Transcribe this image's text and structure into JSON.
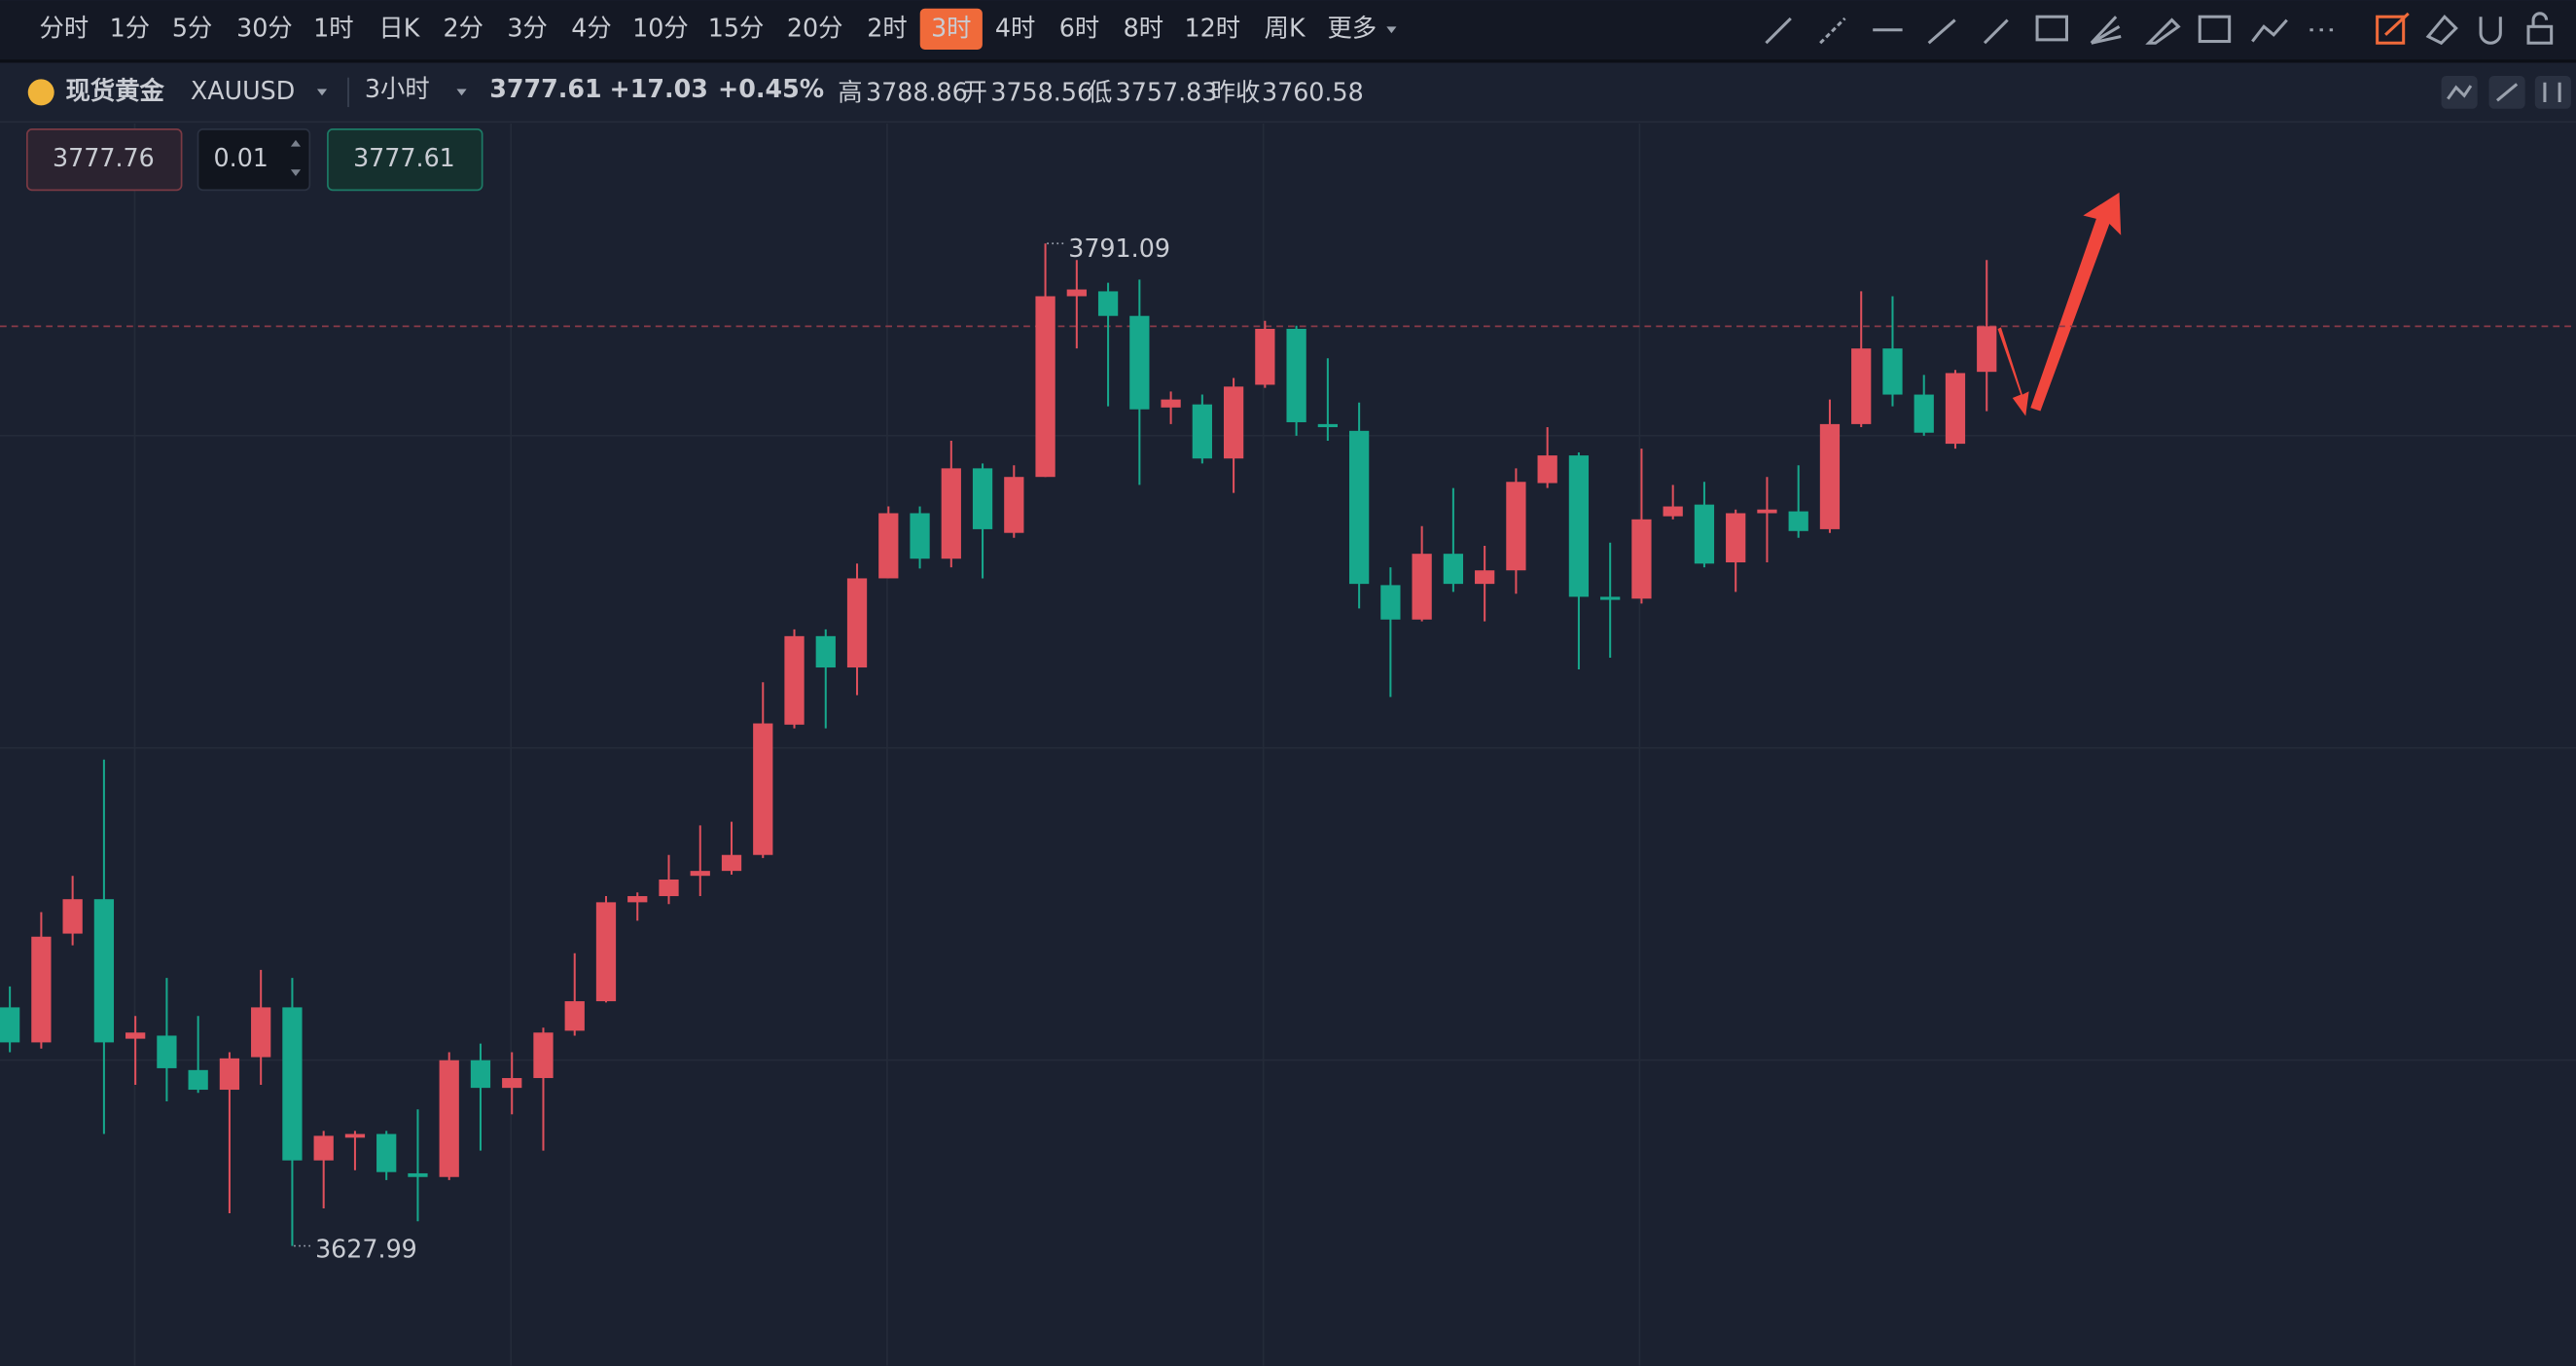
{
  "toolbar": {
    "periods": [
      "分时",
      "1分",
      "5分",
      "30分",
      "1时",
      "日K",
      "2分",
      "3分",
      "4分",
      "10分",
      "15分",
      "20分",
      "2时",
      "3时",
      "4时",
      "6时",
      "8时",
      "12时",
      "周K",
      "更多"
    ],
    "active": 13
  },
  "header": {
    "name": "现货黄金",
    "symbol": "XAUUSD",
    "period": "3小时",
    "price": "3777.61",
    "change": "+17.03",
    "change_pct": "+0.45%",
    "high_label": "高",
    "high": "3788.86",
    "open_label": "开",
    "open": "3758.56",
    "low_label": "低",
    "low": "3757.83",
    "prev_label": "昨收",
    "prev": "3760.58"
  },
  "order": {
    "sell": "3777.76",
    "qty": "0.01",
    "buy": "3777.61"
  },
  "chart_data": {
    "type": "candlestick",
    "up_color": "#e0505c",
    "down_color": "#17a88c",
    "ylim": [
      3608.5,
      3810.6
    ],
    "last_price": 3777.61,
    "open": [
      3666.8,
      3661.1,
      3678.8,
      3684.4,
      3661.7,
      3662.2,
      3656.6,
      3653.4,
      3658.7,
      3666.8,
      3641.9,
      3645.6,
      3646.2,
      3639.8,
      3639.2,
      3658.2,
      3653.7,
      3655.3,
      3663.0,
      3667.8,
      3683.9,
      3684.9,
      3688.2,
      3689.0,
      3691.6,
      3712.8,
      3727.2,
      3722.1,
      3736.6,
      3747.2,
      3739.8,
      3754.5,
      3744.0,
      3753.1,
      3782.5,
      3783.3,
      3779.3,
      3764.4,
      3764.9,
      3756.1,
      3768.1,
      3777.2,
      3761.7,
      3760.6,
      3735.5,
      3729.9,
      3740.6,
      3735.7,
      3737.9,
      3752.1,
      3756.6,
      3733.6,
      3733.3,
      3746.7,
      3748.6,
      3739.2,
      3747.2,
      3747.5,
      3744.6,
      3761.7,
      3774.0,
      3766.5,
      3758.5,
      3770.2
    ],
    "high": [
      3670.2,
      3682.3,
      3688.2,
      3707.1,
      3665.4,
      3671.6,
      3665.4,
      3659.5,
      3672.9,
      3671.6,
      3646.7,
      3646.7,
      3646.7,
      3650.2,
      3659.5,
      3660.9,
      3659.5,
      3663.5,
      3675.6,
      3684.9,
      3685.5,
      3691.6,
      3696.4,
      3697.0,
      3719.7,
      3728.3,
      3728.3,
      3739.0,
      3748.3,
      3748.3,
      3759.0,
      3755.3,
      3755.0,
      3791.09,
      3788.4,
      3784.7,
      3785.2,
      3767.0,
      3766.5,
      3769.2,
      3778.5,
      3777.7,
      3772.4,
      3765.2,
      3738.4,
      3745.1,
      3751.3,
      3741.9,
      3754.5,
      3761.2,
      3757.1,
      3742.4,
      3757.7,
      3751.8,
      3752.3,
      3747.8,
      3753.1,
      3755.0,
      3765.7,
      3783.3,
      3782.5,
      3769.7,
      3770.5,
      3788.4
    ],
    "low": [
      3659.5,
      3660.1,
      3676.9,
      3646.2,
      3654.2,
      3651.5,
      3652.9,
      3633.3,
      3654.2,
      3627.99,
      3634.1,
      3640.3,
      3638.7,
      3632.0,
      3638.7,
      3643.5,
      3649.4,
      3643.5,
      3662.2,
      3667.6,
      3680.9,
      3683.6,
      3684.9,
      3688.4,
      3691.1,
      3712.2,
      3712.2,
      3717.6,
      3736.6,
      3738.2,
      3738.4,
      3736.6,
      3743.2,
      3753.1,
      3774.0,
      3764.6,
      3751.8,
      3761.7,
      3755.3,
      3750.5,
      3767.6,
      3759.8,
      3759.0,
      3731.7,
      3717.3,
      3729.6,
      3734.4,
      3729.6,
      3734.1,
      3751.3,
      3721.8,
      3723.7,
      3732.5,
      3746.2,
      3738.4,
      3734.4,
      3739.2,
      3743.2,
      3744.0,
      3761.2,
      3764.6,
      3759.8,
      3757.7,
      3763.8
    ],
    "close": [
      3661.1,
      3678.3,
      3684.4,
      3661.1,
      3662.7,
      3656.9,
      3653.4,
      3658.5,
      3666.8,
      3641.9,
      3645.9,
      3646.2,
      3640.0,
      3639.2,
      3658.2,
      3653.7,
      3655.3,
      3662.7,
      3667.8,
      3683.9,
      3684.9,
      3687.6,
      3689.0,
      3691.6,
      3713.0,
      3727.2,
      3722.1,
      3736.6,
      3747.2,
      3739.8,
      3754.5,
      3744.6,
      3753.1,
      3782.5,
      3783.6,
      3779.3,
      3764.1,
      3765.7,
      3756.1,
      3767.8,
      3777.2,
      3762.0,
      3761.2,
      3735.7,
      3729.9,
      3740.6,
      3735.7,
      3737.9,
      3752.3,
      3756.6,
      3733.6,
      3733.1,
      3746.2,
      3748.3,
      3739.0,
      3747.2,
      3747.8,
      3744.3,
      3761.7,
      3774.0,
      3766.5,
      3760.3,
      3770.0,
      3777.61
    ],
    "max_value": 3791.09,
    "min_value": 3627.99
  }
}
